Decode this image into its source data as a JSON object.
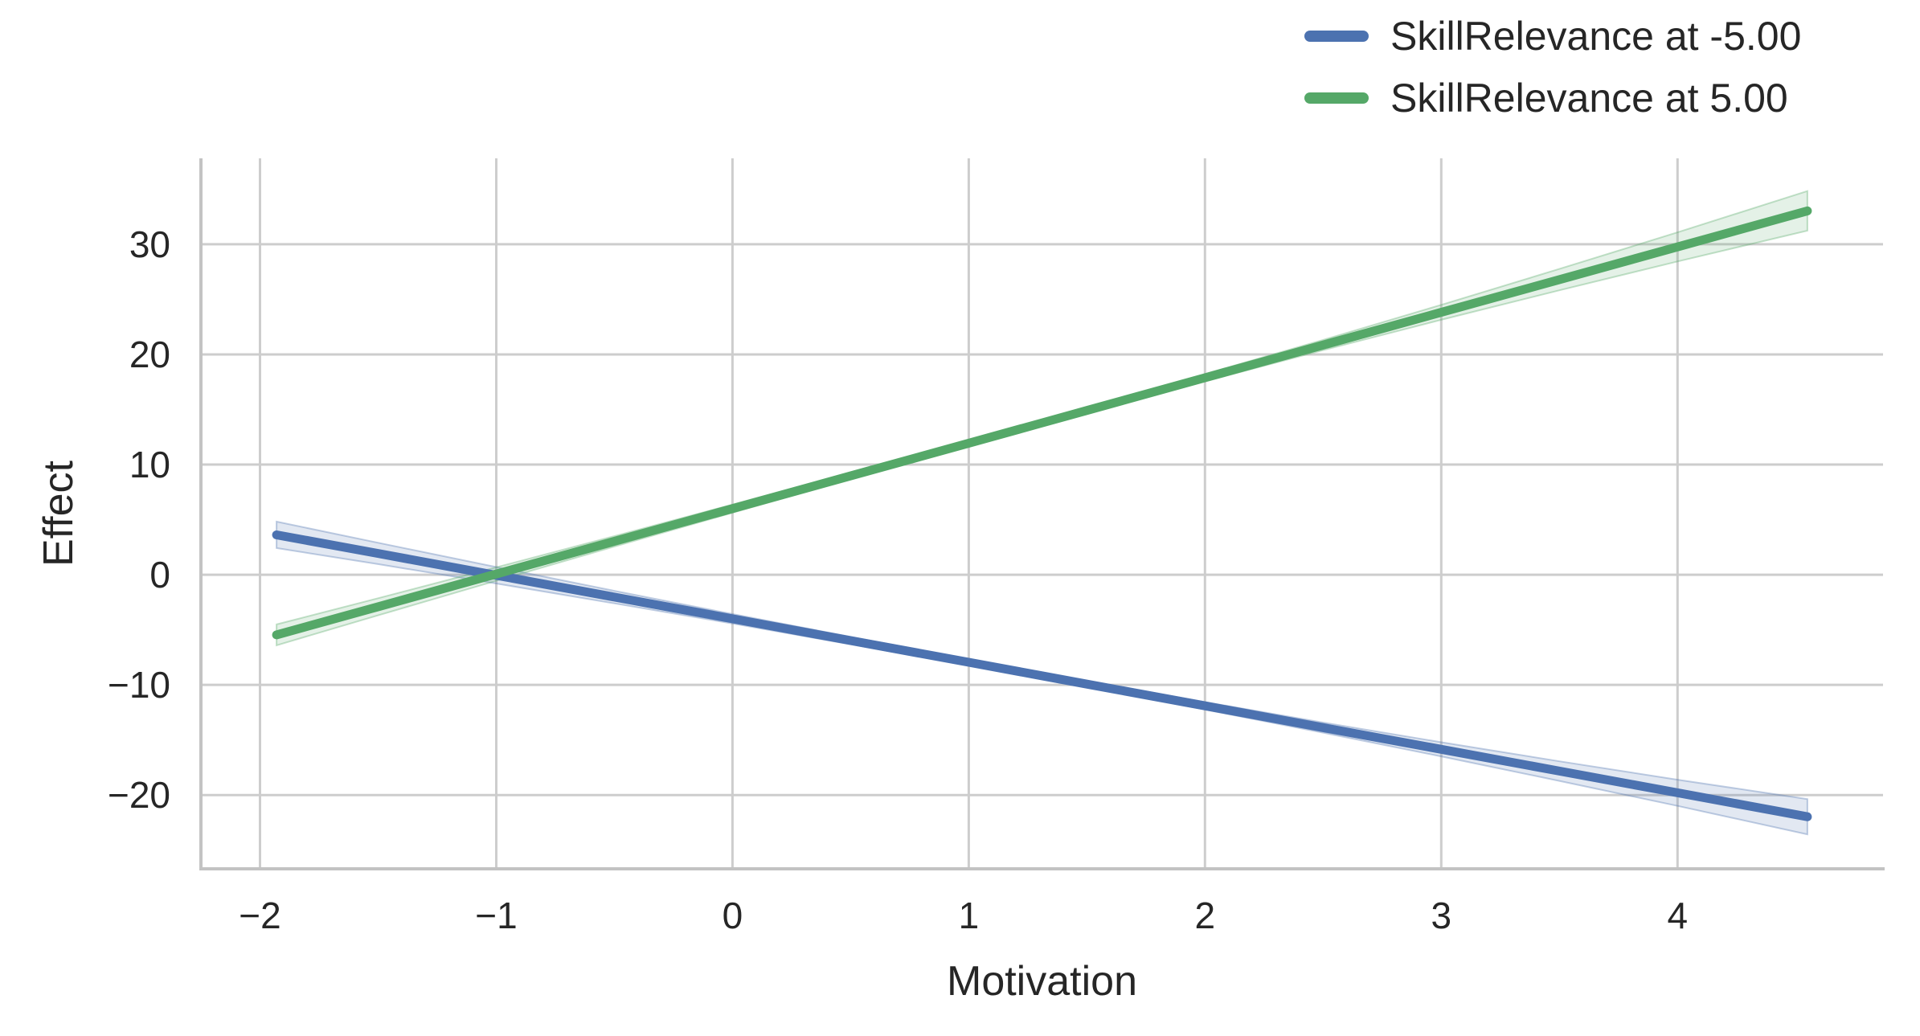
{
  "chart_data": {
    "type": "line",
    "title": "",
    "xlabel": "Motivation",
    "ylabel": "Effect",
    "grid": true,
    "legend_position": "upper right",
    "xlim": [
      -2.25,
      4.87
    ],
    "ylim": [
      -26.7,
      37.8
    ],
    "x_ticks": [
      -2,
      -1,
      0,
      1,
      2,
      3,
      4
    ],
    "x_tick_labels": [
      "−2",
      "−1",
      "0",
      "1",
      "2",
      "3",
      "4"
    ],
    "y_ticks": [
      -20,
      -10,
      0,
      10,
      20,
      30
    ],
    "y_tick_labels": [
      "−20",
      "−10",
      "0",
      "10",
      "20",
      "30"
    ],
    "x": [
      -1.93,
      -1.5,
      -1,
      -0.5,
      0,
      0.5,
      1,
      1.3,
      1.5,
      2,
      2.5,
      3,
      3.5,
      4,
      4.55
    ],
    "series": [
      {
        "name": "SkillRelevance at -5.00",
        "color": "#4C72B0",
        "y": [
          3.62,
          1.93,
          -0.05,
          -2.03,
          -4.0,
          -5.98,
          -7.95,
          -9.14,
          -9.93,
          -11.9,
          -13.88,
          -15.85,
          -17.83,
          -19.8,
          -21.97
        ],
        "ci_lower": [
          2.42,
          0.96,
          -0.8,
          -2.6,
          -4.43,
          -6.32,
          -8.24,
          -9.42,
          -10.22,
          -12.24,
          -14.34,
          -16.49,
          -18.72,
          -20.99,
          -23.57
        ],
        "ci_upper": [
          4.82,
          2.9,
          0.7,
          -1.46,
          -3.57,
          -5.64,
          -7.66,
          -8.86,
          -9.64,
          -11.56,
          -13.42,
          -15.21,
          -16.94,
          -18.61,
          -20.37
        ]
      },
      {
        "name": "SkillRelevance at 5.00",
        "color": "#55A868",
        "y": [
          -5.46,
          -2.91,
          0.06,
          3.03,
          6.0,
          8.97,
          11.94,
          13.72,
          14.91,
          17.88,
          20.85,
          23.82,
          26.79,
          29.76,
          33.03
        ],
        "ci_lower": [
          -6.41,
          -3.69,
          -0.55,
          2.56,
          5.63,
          8.67,
          11.67,
          13.46,
          14.64,
          17.55,
          20.38,
          23.14,
          25.82,
          28.44,
          31.23
        ],
        "ci_upper": [
          -4.51,
          -2.13,
          0.67,
          3.5,
          6.37,
          9.27,
          12.21,
          13.98,
          15.18,
          18.21,
          21.32,
          24.5,
          27.76,
          31.08,
          34.83
        ]
      }
    ],
    "colors": {
      "grid": "#cdcdcd",
      "spine": "#c3c3c3",
      "text": "#262626",
      "ci_band_alpha": 0.16,
      "ci_edge_alpha": 0.35
    }
  }
}
